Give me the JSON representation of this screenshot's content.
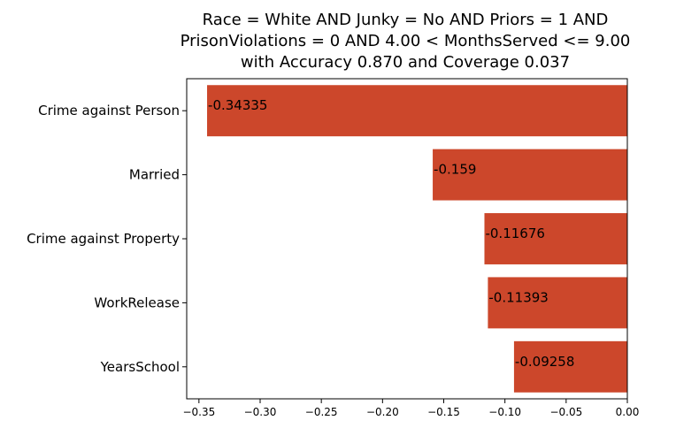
{
  "chart_data": {
    "type": "bar",
    "orientation": "horizontal",
    "title_lines": [
      "Race = White AND Junky = No AND Priors = 1 AND",
      "PrisonViolations = 0 AND 4.00 < MonthsServed <= 9.00",
      "with Accuracy 0.870 and Coverage 0.037"
    ],
    "categories": [
      "Crime against Person",
      "Married",
      "Crime against Property",
      "WorkRelease",
      "YearsSchool"
    ],
    "values": [
      -0.34335,
      -0.159,
      -0.11676,
      -0.11393,
      -0.09258
    ],
    "value_labels": [
      "-0.34335",
      "-0.159",
      "-0.11676",
      "-0.11393",
      "-0.09258"
    ],
    "xlim": [
      -0.36,
      0.0
    ],
    "xticks": [
      -0.35,
      -0.3,
      -0.25,
      -0.2,
      -0.15,
      -0.1,
      -0.05,
      0.0
    ],
    "xtick_labels": [
      "−0.35",
      "−0.30",
      "−0.25",
      "−0.20",
      "−0.15",
      "−0.10",
      "−0.05",
      "0.00"
    ],
    "bar_color": "#cc472b",
    "grid": false,
    "xlabel": "",
    "ylabel": ""
  }
}
